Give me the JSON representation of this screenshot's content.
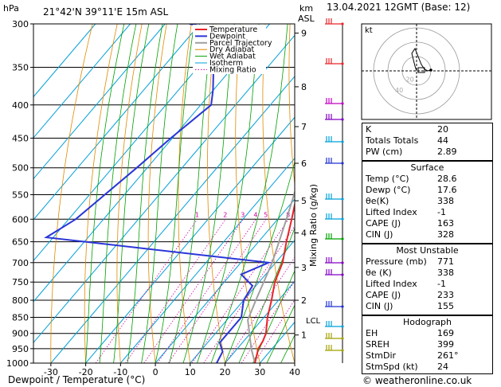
{
  "header": {
    "left_title": "21°42'N  39°11'E  15m  ASL",
    "right_title": "13.04.2021  12GMT  (Base: 12)",
    "hpa_label": "hPa",
    "km_label": "km",
    "asl_label": "ASL",
    "footer": "© weatheronline.co.uk"
  },
  "chart_data": {
    "type": "line",
    "subtype": "skew-T log-P sounding",
    "xlabel": "Dewpoint / Temperature (°C)",
    "ylabel": "hPa",
    "y_right_label": "Mixing Ratio (g/kg)",
    "xlim": [
      -35,
      40
    ],
    "ylim_hpa": [
      1000,
      300
    ],
    "x_ticks": [
      "-30",
      "-20",
      "-10",
      "0",
      "10",
      "20",
      "30",
      "40"
    ],
    "pressure_levels": [
      300,
      350,
      400,
      450,
      500,
      550,
      600,
      650,
      700,
      750,
      800,
      850,
      900,
      950,
      1000
    ],
    "km_ticks": [
      {
        "p": 310,
        "label": "9"
      },
      {
        "p": 375,
        "label": "8"
      },
      {
        "p": 432,
        "label": "7"
      },
      {
        "p": 492,
        "label": "6"
      },
      {
        "p": 562,
        "label": "5"
      },
      {
        "p": 630,
        "label": "4"
      },
      {
        "p": 712,
        "label": "3"
      },
      {
        "p": 800,
        "label": "2"
      },
      {
        "p": 905,
        "label": "1"
      }
    ],
    "lcl": {
      "p": 858,
      "label": "LCL"
    },
    "mixing_ratio_labels": [
      "1",
      "2",
      "3",
      "4",
      "5",
      "8",
      "10",
      "15",
      "20",
      "25"
    ],
    "mixing_ratio_values": [
      1,
      2,
      3,
      4,
      5,
      8,
      10,
      15,
      20,
      25
    ],
    "legend": [
      "Temperature",
      "Dewpoint",
      "Parcel Trajectory",
      "Dry Adiabat",
      "Wet Adiabat",
      "Isotherm",
      "Mixing Ratio"
    ],
    "legend_position": "top-right",
    "colors": {
      "temperature": "#e8242a",
      "dewpoint": "#2a35d8",
      "parcel": "#a0a0a0",
      "dry_adiabat": "#e08a00",
      "wet_adiabat": "#00a000",
      "isotherm": "#00a0d8",
      "mixing_ratio": "#d000a0"
    },
    "temperature": [
      {
        "p": 1000,
        "t": 28.6
      },
      {
        "p": 950,
        "t": 26.0
      },
      {
        "p": 925,
        "t": 25.5
      },
      {
        "p": 900,
        "t": 24.5
      },
      {
        "p": 850,
        "t": 21.0
      },
      {
        "p": 800,
        "t": 18.0
      },
      {
        "p": 750,
        "t": 14.5
      },
      {
        "p": 700,
        "t": 12.0
      },
      {
        "p": 650,
        "t": 8.0
      },
      {
        "p": 600,
        "t": 4.0
      },
      {
        "p": 550,
        "t": -0.5
      },
      {
        "p": 500,
        "t": -5.5
      },
      {
        "p": 450,
        "t": -11.5
      },
      {
        "p": 400,
        "t": -18.0
      },
      {
        "p": 350,
        "t": -25.5
      },
      {
        "p": 300,
        "t": -35.0
      }
    ],
    "dewpoint": [
      {
        "p": 1000,
        "t": 17.6
      },
      {
        "p": 960,
        "t": 16.5
      },
      {
        "p": 930,
        "t": 13.5
      },
      {
        "p": 900,
        "t": 13.5
      },
      {
        "p": 850,
        "t": 13.5
      },
      {
        "p": 800,
        "t": 10.0
      },
      {
        "p": 760,
        "t": 9.0
      },
      {
        "p": 730,
        "t": 3.0
      },
      {
        "p": 700,
        "t": 8.0
      },
      {
        "p": 640,
        "t": -62.0
      },
      {
        "p": 600,
        "t": -58.0
      },
      {
        "p": 500,
        "t": -53.0
      },
      {
        "p": 450,
        "t": -50.5
      },
      {
        "p": 400,
        "t": -47.0
      },
      {
        "p": 380,
        "t": -50.0
      },
      {
        "p": 350,
        "t": -55.5
      },
      {
        "p": 330,
        "t": -45.0
      },
      {
        "p": 310,
        "t": -57.0
      },
      {
        "p": 300,
        "t": -73.0
      }
    ],
    "parcel": [
      {
        "p": 1000,
        "t": 28.6
      },
      {
        "p": 950,
        "t": 24.0
      },
      {
        "p": 858,
        "t": 16.0
      },
      {
        "p": 800,
        "t": 13.5
      },
      {
        "p": 700,
        "t": 9.0
      },
      {
        "p": 600,
        "t": 2.5
      },
      {
        "p": 500,
        "t": -5.5
      },
      {
        "p": 400,
        "t": -16.0
      },
      {
        "p": 350,
        "t": -23.0
      },
      {
        "p": 300,
        "t": -31.0
      }
    ]
  },
  "hodograph": {
    "label": "kt",
    "ring_labels": [
      "20",
      "40"
    ]
  },
  "indices": [
    {
      "label": "K",
      "value": "20"
    },
    {
      "label": "Totals Totals",
      "value": "44"
    },
    {
      "label": "PW (cm)",
      "value": "2.89"
    }
  ],
  "surface": {
    "title": "Surface",
    "rows": [
      {
        "label": "Temp (°C)",
        "value": "28.6"
      },
      {
        "label": "Dewp (°C)",
        "value": "17.6"
      },
      {
        "label": "θe(K)",
        "value": "338"
      },
      {
        "label": "Lifted Index",
        "value": "-1"
      },
      {
        "label": "CAPE (J)",
        "value": "163"
      },
      {
        "label": "CIN (J)",
        "value": "328"
      }
    ]
  },
  "most_unstable": {
    "title": "Most Unstable",
    "rows": [
      {
        "label": "Pressure (mb)",
        "value": "771"
      },
      {
        "label": "θe (K)",
        "value": "338"
      },
      {
        "label": "Lifted Index",
        "value": "-1"
      },
      {
        "label": "CAPE (J)",
        "value": "233"
      },
      {
        "label": "CIN (J)",
        "value": "155"
      }
    ]
  },
  "hodograph_table": {
    "title": "Hodograph",
    "rows": [
      {
        "label": "EH",
        "value": "169"
      },
      {
        "label": "SREH",
        "value": "399"
      },
      {
        "label": "StmDir",
        "value": "261°"
      },
      {
        "label": "StmSpd (kt)",
        "value": "24"
      }
    ]
  }
}
